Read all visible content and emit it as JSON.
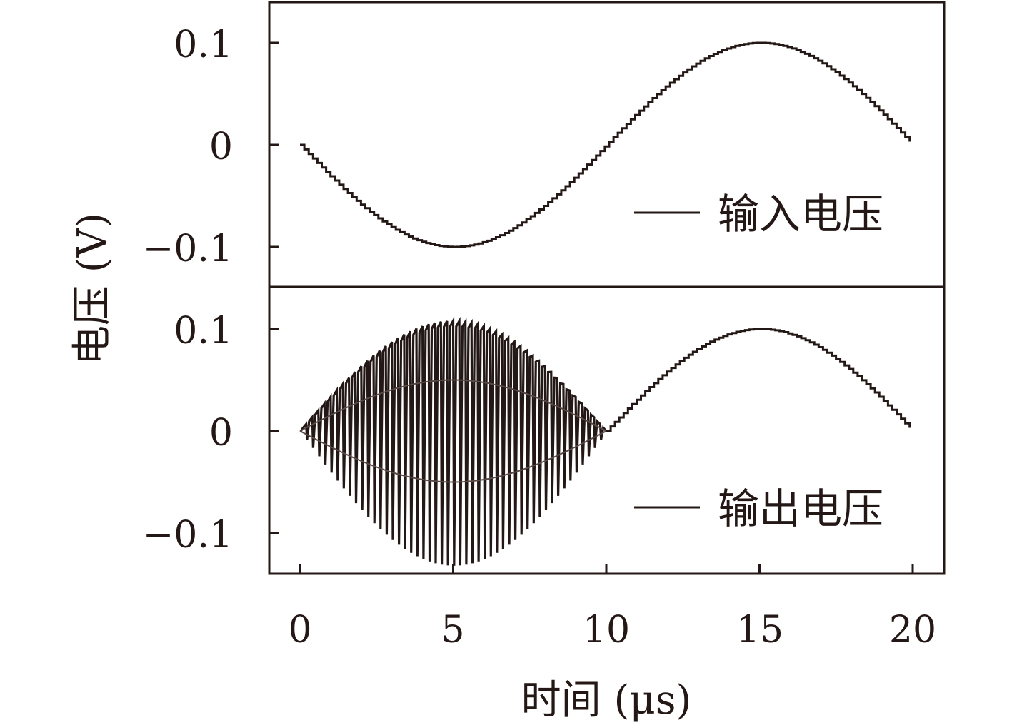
{
  "chart_data": {
    "type": "line",
    "xlabel": "时间 (μs)",
    "ylabel": "电压 (V)",
    "xlim": [
      -1,
      21
    ],
    "x_ticks": [
      "0",
      "5",
      "10",
      "15",
      "20"
    ],
    "x_tick_values": [
      0,
      5,
      10,
      15,
      20
    ],
    "grid": false,
    "panels": [
      {
        "name": "top",
        "ylim": [
          -0.14,
          0.14
        ],
        "y_ticks": [
          "0.1",
          "0",
          "−0.1"
        ],
        "y_tick_values": [
          0.1,
          0,
          -0.1
        ],
        "legend": "输入电压",
        "legend_position": "bottom-right",
        "series": [
          {
            "name": "输入电压",
            "color": "#231815",
            "x": [
              0,
              1,
              2,
              3,
              4,
              5,
              6,
              7,
              8,
              9,
              10,
              11,
              12,
              13,
              14,
              15,
              16,
              17,
              18,
              19,
              20
            ],
            "y": [
              0,
              -0.031,
              -0.059,
              -0.081,
              -0.095,
              -0.1,
              -0.095,
              -0.081,
              -0.059,
              -0.031,
              0,
              0.031,
              0.059,
              0.081,
              0.095,
              0.1,
              0.095,
              0.081,
              0.059,
              0.031,
              0.008
            ]
          }
        ]
      },
      {
        "name": "bottom",
        "ylim": [
          -0.14,
          0.14
        ],
        "y_ticks": [
          "0.1",
          "0",
          "−0.1"
        ],
        "y_tick_values": [
          0.1,
          0,
          -0.1
        ],
        "legend": "输出电压",
        "legend_position": "bottom-right",
        "series": [
          {
            "name": "输出电压",
            "color": "#231815",
            "description_x": "0 to 20",
            "oscillation": {
              "x_range": [
                0,
                10
              ],
              "cycles": 50,
              "envelope_upper_peak": 0.108,
              "envelope_lower_peak": -0.132,
              "envelope_inner_peak": 0.05,
              "envelope_inner_trough": -0.05
            },
            "x": [
              10,
              11,
              12,
              13,
              14,
              15,
              16,
              17,
              18,
              19,
              20
            ],
            "y": [
              0,
              0.031,
              0.059,
              0.081,
              0.095,
              0.1,
              0.095,
              0.081,
              0.059,
              0.031,
              0.008
            ]
          }
        ]
      }
    ]
  }
}
